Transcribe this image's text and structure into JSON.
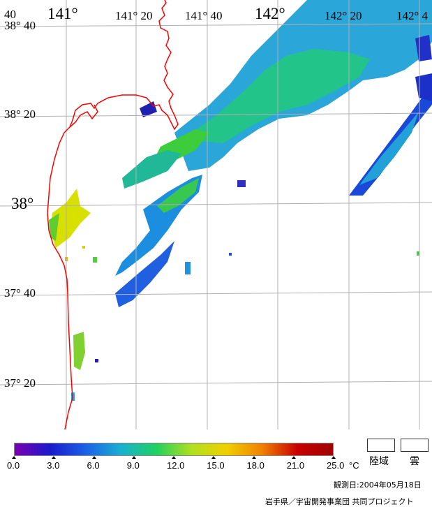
{
  "map": {
    "lon_labels": [
      {
        "text": "141°",
        "big": true
      },
      {
        "text": "141° 20",
        "big": false
      },
      {
        "text": "141° 40",
        "big": false
      },
      {
        "text": "142°",
        "big": true
      },
      {
        "text": "142° 20",
        "big": false
      },
      {
        "text": "142° 4",
        "big": false
      }
    ],
    "lat_labels": [
      {
        "text": "38° 40",
        "big": false
      },
      {
        "text": "38° 20",
        "big": false
      },
      {
        "text": "38°",
        "big": true
      },
      {
        "text": "37° 40",
        "big": false
      },
      {
        "text": "37° 20",
        "big": false
      }
    ],
    "corner_label": "40",
    "coastline_color": "#ff0000",
    "grid_color": "#b0b0b0"
  },
  "colorbar": {
    "ticks": [
      "0.0",
      "3.0",
      "6.0",
      "9.0",
      "12.0",
      "15.0",
      "18.0",
      "21.0",
      "25.0"
    ],
    "unit": "°C",
    "stops": [
      "#7a00b0",
      "#1a1acc",
      "#1a60e6",
      "#1ab0d0",
      "#20d060",
      "#b0e020",
      "#f0d000",
      "#f08000",
      "#c80000",
      "#a00000"
    ]
  },
  "legend": {
    "land_label": "陸域",
    "cloud_label": "雲"
  },
  "footer": {
    "observation_date": "観測日:2004年05月18日",
    "credit": "岩手県／宇宙開発事業団 共同プロジェクト"
  }
}
